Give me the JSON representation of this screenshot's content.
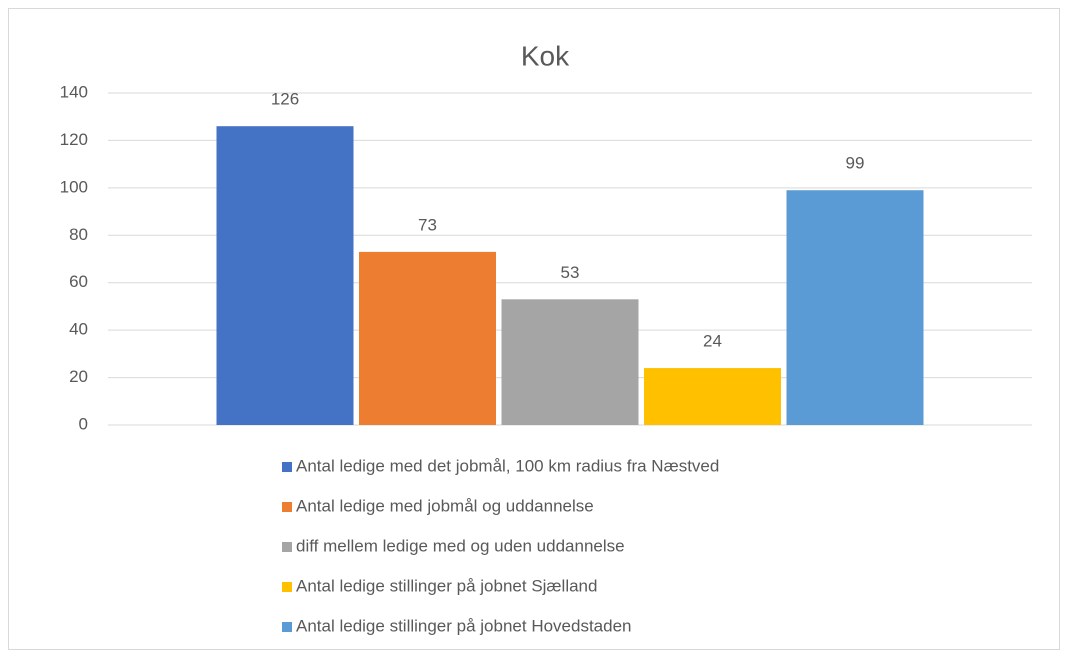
{
  "chart_data": {
    "type": "bar",
    "title": "Kok",
    "categories": [
      null
    ],
    "series": [
      {
        "name": "Antal ledige med det jobmål, 100 km radius fra Næstved",
        "color": "#4472c4",
        "values": [
          126
        ]
      },
      {
        "name": "Antal ledige med jobmål og uddannelse",
        "color": "#ed7d31",
        "values": [
          73
        ]
      },
      {
        "name": "diff mellem ledige med og uden uddannelse",
        "color": "#a5a5a5",
        "values": [
          53
        ]
      },
      {
        "name": "Antal ledige stillinger på jobnet Sjælland",
        "color": "#ffc000",
        "values": [
          24
        ]
      },
      {
        "name": "Antal ledige stillinger på jobnet Hovedstaden",
        "color": "#5b9bd5",
        "values": [
          99
        ]
      }
    ],
    "ylim": [
      0,
      140
    ],
    "yticks": [
      0,
      20,
      40,
      60,
      80,
      100,
      120,
      140
    ],
    "grid": true,
    "legend": "bottom"
  }
}
